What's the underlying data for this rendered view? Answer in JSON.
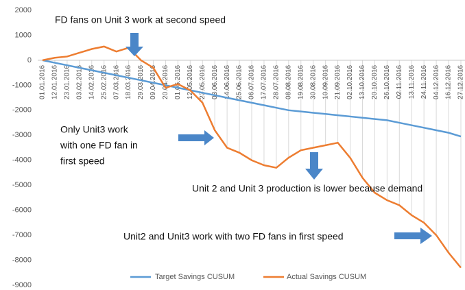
{
  "chart_data": {
    "type": "line",
    "categories": [
      "01.01.2016",
      "12.01.2016",
      "23.01.2016",
      "03.02.2016",
      "14.02.2016",
      "25.02.2016",
      "07.03.2016",
      "18.03.2016",
      "29.03.2016",
      "09.04.2016",
      "20.04.2016",
      "01.05.2016",
      "12.05.2016",
      "23.05.2016",
      "03.06.2016",
      "14.06.2016",
      "25.06.2016",
      "06.07.2016",
      "17.07.2016",
      "28.07.2016",
      "08.08.2016",
      "19.08.2016",
      "30.08.2016",
      "10.09.2016",
      "21.09.2016",
      "02.10.2016",
      "13.10.2016",
      "20.10.2016",
      "26.10.2016",
      "02.11.2016",
      "13.11.2016",
      "24.11.2016",
      "04.12.2016",
      "16.12.2016",
      "27.12.2016"
    ],
    "series": [
      {
        "name": "Target Savings CUSUM",
        "color": "#5b9bd5",
        "values": [
          0,
          -100,
          -200,
          -300,
          -400,
          -500,
          -600,
          -700,
          -800,
          -900,
          -1000,
          -1100,
          -1200,
          -1300,
          -1400,
          -1500,
          -1600,
          -1700,
          -1800,
          -1900,
          -2000,
          -2050,
          -2100,
          -2150,
          -2200,
          -2250,
          -2300,
          -2350,
          -2400,
          -2500,
          -2600,
          -2700,
          -2800,
          -2900,
          -3050
        ]
      },
      {
        "name": "Actual Savings CUSUM",
        "color": "#ed7d31",
        "values": [
          0,
          100,
          150,
          300,
          450,
          550,
          350,
          500,
          0,
          -300,
          -1100,
          -950,
          -1200,
          -1700,
          -2800,
          -3500,
          -3700,
          -4000,
          -4200,
          -4300,
          -3900,
          -3600,
          -3500,
          -3400,
          -3300,
          -3900,
          -4700,
          -5300,
          -5600,
          -5800,
          -6200,
          -6500,
          -7000,
          -7700,
          -8300
        ]
      }
    ],
    "ylim": [
      -9000,
      2000
    ],
    "yticks": [
      2000,
      1000,
      0,
      -1000,
      -2000,
      -3000,
      -4000,
      -5000,
      -6000,
      -7000,
      -8000,
      -9000
    ],
    "annotations": [
      "FD fans on Unit 3 work at second speed",
      "Only Unit3 work",
      "with one FD fan in",
      "first speed",
      "Unit 2 and Unit 3 production is lower because demand",
      "Unit2 and Unit3 work with two FD fans in first speed"
    ]
  }
}
